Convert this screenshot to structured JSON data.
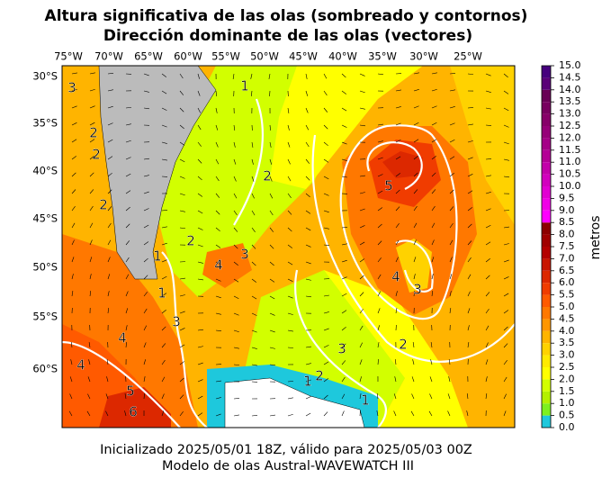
{
  "title": [
    "Altura significativa de las olas (sombreado y contornos)",
    "Dirección dominante de las olas (vectores)"
  ],
  "map": {
    "lon_labels": [
      "75°W",
      "70°W",
      "65°W",
      "60°W",
      "55°W",
      "50°W",
      "45°W",
      "40°W",
      "35°W",
      "30°W",
      "25°W"
    ],
    "lat_labels": [
      "30°S",
      "35°S",
      "40°S",
      "45°S",
      "50°S",
      "55°S",
      "60°S"
    ],
    "contour_labels": [
      "3",
      "2",
      "2",
      "2",
      "1",
      "2",
      "4",
      "3",
      "1",
      "3",
      "4",
      "4",
      "5",
      "6",
      "2",
      "5",
      "4",
      "3",
      "2",
      "3",
      "1",
      "2",
      "1",
      "1"
    ]
  },
  "colorbar": {
    "label": "metros",
    "ticks": [
      {
        "value": 0,
        "label": "0.0"
      },
      {
        "value": 0.5,
        "label": "0.5"
      },
      {
        "value": 1,
        "label": "1.0"
      },
      {
        "value": 1.5,
        "label": "1.5"
      },
      {
        "value": 2,
        "label": "2.0"
      },
      {
        "value": 2.5,
        "label": "2.5"
      },
      {
        "value": 3,
        "label": "3.0"
      },
      {
        "value": 3.5,
        "label": "3.5"
      },
      {
        "value": 4,
        "label": "4.0"
      },
      {
        "value": 4.5,
        "label": "4.5"
      },
      {
        "value": 5,
        "label": "5.0"
      },
      {
        "value": 5.5,
        "label": "5.5"
      },
      {
        "value": 6,
        "label": "6.0"
      },
      {
        "value": 6.5,
        "label": "6.5"
      },
      {
        "value": 7,
        "label": "7.0"
      },
      {
        "value": 7.5,
        "label": "7.5"
      },
      {
        "value": 8,
        "label": "8.0"
      },
      {
        "value": 8.5,
        "label": "8.5"
      },
      {
        "value": 9,
        "label": "9.0"
      },
      {
        "value": 9.5,
        "label": "9.5"
      },
      {
        "value": 10,
        "label": "10.0"
      },
      {
        "value": 10.5,
        "label": "10.5"
      },
      {
        "value": 11,
        "label": "11.0"
      },
      {
        "value": 11.5,
        "label": "11.5"
      },
      {
        "value": 12,
        "label": "12.0"
      },
      {
        "value": 12.5,
        "label": "12.5"
      },
      {
        "value": 13,
        "label": "13.0"
      },
      {
        "value": 13.5,
        "label": "13.5"
      },
      {
        "value": 14,
        "label": "14.0"
      },
      {
        "value": 14.5,
        "label": "14.5"
      },
      {
        "value": 15,
        "label": "15.0"
      }
    ],
    "colors": [
      "#1ec8dc",
      "#7df01e",
      "#b4f000",
      "#d2ff00",
      "#ffff00",
      "#ffea00",
      "#ffd200",
      "#ffb400",
      "#ff9600",
      "#ff7800",
      "#ff5a00",
      "#f03c00",
      "#dc2800",
      "#c81400",
      "#b40000",
      "#a00000",
      "#8c0000",
      "#ff00ff",
      "#f000e6",
      "#e100d2",
      "#d200be",
      "#c300aa",
      "#b40096",
      "#a50087",
      "#960078",
      "#870069",
      "#78005f",
      "#690055",
      "#5a0078",
      "#46007d"
    ]
  },
  "footer": [
    "Inicializado 2025/05/01 18Z, válido para 2025/05/03 00Z",
    "Modelo de olas Austral-WAVEWATCH III"
  ]
}
